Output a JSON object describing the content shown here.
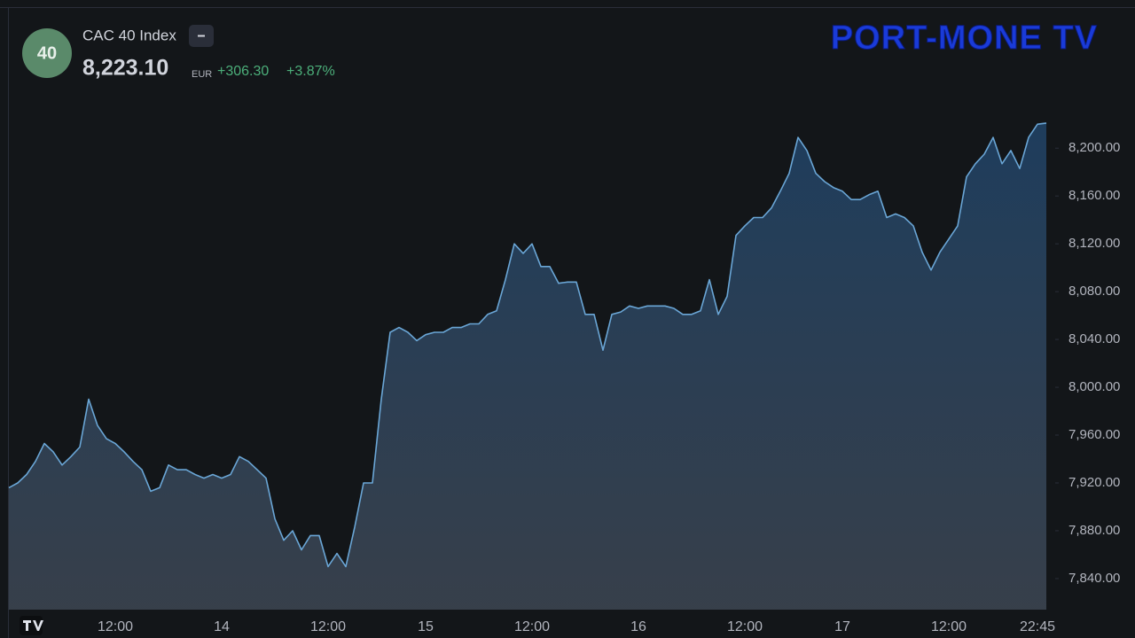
{
  "chart_data": {
    "type": "area",
    "title": "CAC 40 Index",
    "badge": "40",
    "last_price": "8,223.10",
    "currency": "EUR",
    "change": "+306.30",
    "change_percent": "+3.87%",
    "watermark": "PORT-MONE TV",
    "color": "#6aa6d6",
    "categories": [
      null,
      null,
      null,
      null,
      null,
      null,
      null,
      null,
      null,
      null,
      null,
      null,
      "12:00",
      null,
      null,
      null,
      null,
      null,
      null,
      null,
      null,
      null,
      null,
      null,
      "14",
      null,
      null,
      null,
      null,
      null,
      null,
      null,
      null,
      null,
      null,
      null,
      "12:00",
      null,
      null,
      null,
      null,
      null,
      null,
      null,
      null,
      null,
      null,
      "15",
      null,
      null,
      null,
      null,
      null,
      null,
      null,
      null,
      null,
      null,
      null,
      "12:00",
      null,
      null,
      null,
      null,
      null,
      null,
      null,
      null,
      null,
      null,
      null,
      "16",
      null,
      null,
      null,
      null,
      null,
      null,
      null,
      null,
      null,
      null,
      null,
      "12:00",
      null,
      null,
      null,
      null,
      null,
      null,
      null,
      null,
      null,
      null,
      "17",
      null,
      null,
      null,
      null,
      null,
      null,
      null,
      null,
      null,
      null,
      null,
      "12:00",
      null,
      null,
      null,
      null,
      null,
      null,
      null,
      null,
      null,
      "22:45",
      null
    ],
    "values": [
      7916,
      7920,
      7927,
      7938,
      7953,
      7946,
      7935,
      7942,
      7950,
      7990,
      7968,
      7957,
      7953,
      7946,
      7938,
      7931,
      7913,
      7916,
      7935,
      7931,
      7931,
      7927,
      7924,
      7927,
      7924,
      7927,
      7942,
      7938,
      7931,
      7924,
      7890,
      7872,
      7880,
      7864,
      7876,
      7876,
      7850,
      7861,
      7850,
      7883,
      7920,
      7920,
      7990,
      8046,
      8050,
      8046,
      8039,
      8044,
      8046,
      8046,
      8050,
      8050,
      8053,
      8053,
      8061,
      8064,
      8090,
      8120,
      8112,
      8120,
      8101,
      8101,
      8087,
      8088,
      8088,
      8061,
      8061,
      8031,
      8061,
      8063,
      8068,
      8066,
      8068,
      8068,
      8068,
      8066,
      8061,
      8061,
      8064,
      8090,
      8061,
      8076,
      8127,
      8135,
      8142,
      8142,
      8150,
      8164,
      8179,
      8209,
      8198,
      8179,
      8172,
      8167,
      8164,
      8157,
      8157,
      8161,
      8164,
      8142,
      8145,
      8142,
      8135,
      8113,
      8098,
      8113,
      8124,
      8135,
      8176,
      8187,
      8195,
      8209,
      8187,
      8198,
      8183,
      8209,
      8220,
      8221
    ],
    "ylim": [
      7814,
      8235
    ],
    "yticks": [
      {
        "value": 7840,
        "label": "7,840.00"
      },
      {
        "value": 7880,
        "label": "7,880.00"
      },
      {
        "value": 7920,
        "label": "7,920.00"
      },
      {
        "value": 7960,
        "label": "7,960.00"
      },
      {
        "value": 8000,
        "label": "8,000.00"
      },
      {
        "value": 8040,
        "label": "8,040.00"
      },
      {
        "value": 8080,
        "label": "8,080.00"
      },
      {
        "value": 8120,
        "label": "8,120.00"
      },
      {
        "value": 8160,
        "label": "8,160.00"
      },
      {
        "value": 8200,
        "label": "8,200.00"
      }
    ],
    "grid": false
  }
}
